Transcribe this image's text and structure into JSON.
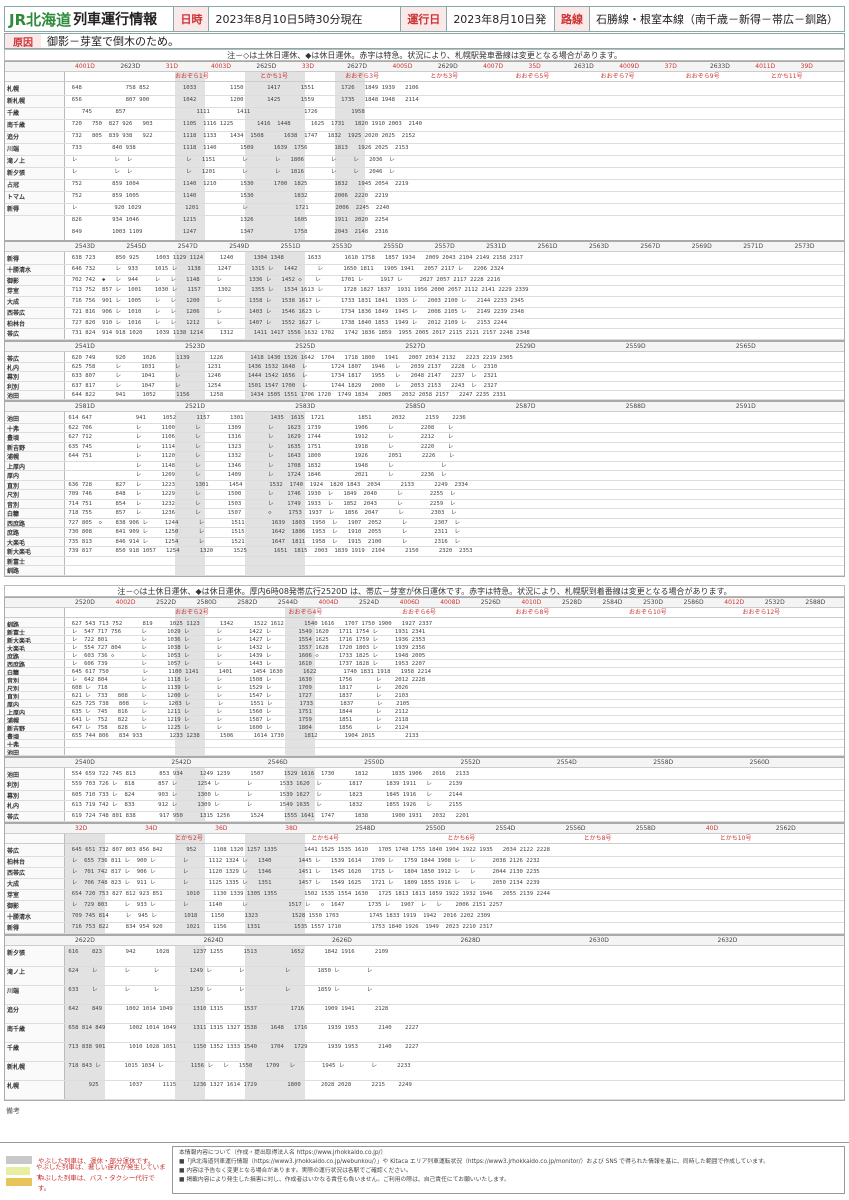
{
  "header": {
    "logo_brand": "JR北海道",
    "title": "列車運行情報",
    "date_label": "日時",
    "date_value": "2023年8月10日5時30分現在",
    "opday_label": "運行日",
    "opday_value": "2023年8月10日発",
    "route_label": "路線",
    "route_value": "石勝線・根室本線（南千歳－新得－帯広－釧路）"
  },
  "cause": {
    "label": "原因",
    "text": "御影－芽室で倒木のため。"
  },
  "notes": {
    "top_note": "注－◇は土休日運休、◆は休日運休。赤字は特急。状況により、札幌駅発車番線は変更となる場合があります。",
    "mid_note": "注－◇は土休日運休、◆は休日運休。厚内6時08発帯広行2520D は、帯広－芽室が休日運休です。赤字は特急。状況により、札幌駅到着番線は変更となる場合があります。"
  },
  "block1": {
    "trains": [
      "4001D",
      "2623D",
      "31D",
      "4003D",
      "2625D",
      "33D",
      "2627D",
      "4005D",
      "2629D",
      "4007D",
      "35D",
      "2631D",
      "4009D",
      "37D",
      "2633D",
      "4011D",
      "39D"
    ],
    "names": [
      "おおぞら1号",
      "とかち1号",
      "おおぞら3号",
      "とかち3号",
      "おおぞら5号",
      "おおぞら7号",
      "おおぞら9号",
      "とかち11号"
    ],
    "stations": [
      "札幌",
      "新札幌",
      "千歳",
      "南千歳",
      "追分",
      "川端",
      "滝ノ上",
      "新夕張",
      "占冠",
      "トマム",
      "新得"
    ],
    "rows": [
      "  648             758 852          1033          1150       1417      1551        1726   1849 1939   2106",
      "  656             807 900          1042          1200       1425      1559        1735   1848 1948   2114",
      "     745       857                     1111        1411                1726          1958",
      "  720   750  827 926   903         1105  1116 1225       1416  1448      1625  1731   1820 1910 2003  2140",
      "  732   805  839 938   922         1118  1133    1434  1508      1638  1747   1832  1925 2020 2025  2152",
      "  733         840 938              1118  1140       1509      1639  1756        1813   1926 2025  2153",
      "  レ           レ  レ                レ   1151        レ        レ   1806        レ     レ   2036  レ",
      "  レ           レ  レ                レ   1201        レ        レ   1816        レ     レ   2046  レ",
      "  752         859 1004             1140  1210       1530      1700  1825        1832   1945 2054  2219",
      "  752         859 1005             1140             1530            1832        2006  2220  2219",
      "  レ           920 1029             1201             レ              1721        2006  2245  2240",
      "  826         934 1046             1215             1326            1605        1911  2020  2254",
      "  849         1003 1109            1247             1347            1758        2043  2148  2316"
    ]
  },
  "block2": {
    "trains": [
      "2543D",
      "2545D",
      "2547D",
      "2549D",
      "2551D",
      "2553D",
      "2555D",
      "2557D",
      "2531D",
      "2561D",
      "2563D",
      "2567D",
      "2569D",
      "2571D",
      "2573D"
    ],
    "stations": [
      "新得",
      "十勝清水",
      "御影",
      "芽室",
      "大成",
      "西帯広",
      "柏林台",
      "帯広"
    ],
    "rows": [
      "  638 723      850 925     1003 1129 1124     1240      1304 1348       1633       1610 1758   1857 1934   2009 2043 2104 2149 2158 2317",
      "  646 732      レ  933     1015 レ   1138     1247      1315 レ   1442      レ      1650 1811   1905 1941   2057 2117 レ   2206 2324",
      "  702 742  ◆   レ  944     レ   レ   1148     レ        1336 レ   1452 ◇    レ      1701 レ     1917 レ     2027 2057 2117 2228 2216",
      "  713 752  857 レ  1001    1030 レ   1157     1302      1355 レ   1534 1613 レ      1728 1827 1837  1931 1956 2000 2057 2112 2141 2229 2339",
      "  716 756  901 レ  1005    レ   レ   1200     レ        1358 レ   1538 1617 レ      1733 1831 1841  1935 レ   2003 2100 レ   2144 2233 2345",
      "  721 816  906 レ  1010    レ   レ   1206     レ        1403 レ   1546 1623 レ      1734 1836 1849  1945 レ   2008 2105 レ   2149 2239 2348",
      "  727 820  910 レ  1016    レ   レ   1212     レ        1407 レ   1552 1627 レ      1738 1840 1853  1949 レ   2012 2109 レ   2153 2244",
      "  731 824  914 918 1020    1039 1138 1214     1312      1411 1417 1556 1632 1702   1742 1836 1859  1955 2005 2017 2115 2121 2157 2248 2348"
    ]
  },
  "block3": {
    "trains": [
      "2541D",
      "2523D",
      "2525D",
      "2527D",
      "2529D",
      "2559D",
      "2565D"
    ],
    "stations": [
      "帯広",
      "札内",
      "幕別",
      "利別",
      "池田"
    ],
    "rows": [
      "  620 749      920     1026      1139      1226        1418 1430 1526 1642  1704   1718 1800   1941   2007 2034 2132   2223 2219 2305",
      "  625 758      レ      1031      レ        1231        1436 1532 1648  レ       1724 1807   1946   レ   2039 2137   2228  レ  2310",
      "  633 807      レ      1041      レ        1246        1444 1542 1656  レ       1734 1817   1955   レ   2048 2147   2237  レ  2321",
      "  637 817      レ      1047      レ        1254        1501 1547 1700  レ       1744 1829   2000   レ   2053 2153   2243  レ  2327",
      "  644 822      941     1052      1156      1258        1434 1505 1551 1706 1720  1749 1834   2005   2032 2058 2157   2247 2235 2331"
    ]
  },
  "block4": {
    "trains": [
      "2581D",
      "2521D",
      "2583D",
      "2585D",
      "2587D",
      "2588D",
      "2591D"
    ],
    "stations": [
      "池田",
      "十弗",
      "豊頃",
      "新吉野",
      "浦幌",
      "上厚内",
      "厚内",
      "直別",
      "尺別",
      "音別",
      "白糠",
      "西庶路",
      "庶路",
      "大楽毛",
      "新大楽毛",
      "新富士",
      "釧路"
    ],
    "rows": [
      " 614 647             941     1052      1157      1301        1435  1615  1721          1851      2032      2159    2236",
      " 622 706             レ      1100      レ        1309        レ    1623  1739          1906      レ        2208    レ",
      " 627 712             レ      1106      レ        1316        レ    1629  1744          1912      レ        2212    レ",
      " 635 745             レ      1114      レ        1323        レ    1635  1751          1918      レ        2220    レ",
      " 644 751             レ      1120      レ        1332        レ    1643  1800          1926      2051      2226    レ",
      "                     レ      1148      レ        1346        レ    1708  1832          1948      レ              レ",
      "                     レ      1209      レ        1409        レ    1724  1846          2021      レ        2236  レ",
      " 636 728       827   レ      1223      1301      1454        1532  1740  1924  1820 1843  2034      2133      2249  2334",
      " 709 746       848   レ      1229      レ        1500        レ    1746  1930  レ   1849  2040      レ        2255  レ",
      " 714 751       854   レ      1232      レ        1503        レ    1749  1933  レ   1852  2043      レ        2259  レ",
      " 718 755       857   レ      1236      レ        1507        ◇     1753  1937  レ   1856  2047      レ        2303  レ",
      " 727 805  ◇    838 906 レ     1244      レ        1511        1639  1803  1950  レ   1907  2052      レ        2307  レ",
      " 730 808       841 909 レ     1250      レ        1515        1642  1806  1953  レ   1910  2055      レ        2311  レ",
      " 735 813       846 914 レ     1254      レ        1521        1647  1811  1958  レ   1915  2100      レ        2316  レ",
      " 739 817       850 918 1057   1254      1320      1525        1651  1815  2003  1839 1919  2104      2150      2320  2353"
    ]
  },
  "block5": {
    "trains": [
      "2520D",
      "4002D",
      "2522D",
      "2580D",
      "2582D",
      "2544D",
      "4004D",
      "2524D",
      "4006D",
      "4008D",
      "2526D",
      "4010D",
      "2528D",
      "2584D",
      "2530D",
      "2586D",
      "4012D",
      "2532D",
      "2588D"
    ],
    "names": [
      "おおぞら2号",
      "おおぞら4号",
      "おおぞら6号",
      "おおぞら8号",
      "おおぞら10号",
      "おおぞら12号"
    ],
    "stations": [
      "釧路",
      "新富士",
      "新大楽毛",
      "大楽毛",
      "庶路",
      "西庶路",
      "白糠",
      "音別",
      "尺別",
      "直別",
      "厚内",
      "上厚内",
      "浦幌",
      "新吉野",
      "豊頃",
      "十弗",
      "池田"
    ],
    "rows": [
      "  627 543 713 752      819     1025 1123      1342      1522 1612      1540 1616   1707 1750 1900   1927 2337",
      "  レ  547 717 756      レ      1029 レ        レ        1422 レ        1549 1620   1711 1754 レ     1931 2341",
      "  レ  722 801          レ      1036 レ        レ        1427 レ        1554 1625   1716 1759 レ     1936 2353",
      "  レ  554 727 804      レ      1038 レ        レ        1432 レ        1557 1628   1720 1803 レ     1939 2356",
      "  レ  603 736 ◇        レ      1053 レ        レ        1439 レ        1606 ◇      1733 1825 レ     1948 2005",
      "  レ  606 739          レ      1057 レ        レ        1443 レ        1610        1737 1828 レ     1953 2207",
      "  645 617 750          レ      1100 1141      1401      1454 1630      1622        1740 1831 1918   1958 2214",
      "  レ  642 804          レ      1118 レ        レ        1508 レ        1630        1756       レ    2012 2228",
      "  608 レ  718          レ      1139 レ        レ        1529 レ        1709        1817       レ    2026",
      "  621 レ  733   808    レ      1200 レ        レ        1547 レ        1727        1837       レ    2103",
      "  625 725 738   808    レ      1203 レ        レ        1551 レ        1733        1837       レ    2105",
      "  635 レ  745   816    レ      1211 レ        レ        1560 レ        1751        1844       レ    2112",
      "  641 レ  752   822    レ      1219 レ        レ        1587 レ        1759        1851       レ    2118",
      "  647 レ  758   828    レ      1225 レ        レ        1600 レ        1804        1856       レ    2124",
      "  655 744 806   834 933        1233 1238      1506      1614 1730      1812        1904 2015         2133"
    ]
  },
  "block6": {
    "trains": [
      "2540D",
      "2542D",
      "2546D",
      "2550D",
      "2552D",
      "2554D",
      "2558D",
      "2560D"
    ],
    "stations": [
      "池田",
      "利別",
      "幕別",
      "札内",
      "帯広"
    ],
    "rows": [
      "  554 659 722 745 813       853 934     1249 1239      1507      1529 1616  1730      1812       1835 1906   2016   2133",
      "  559 703 726 レ  818       857 レ      1254 レ        レ        1533 1620  レ        1817       1839 1911   レ     2139",
      "  605 710 733 レ  824       903 レ      1300 レ        レ        1539 1627  レ        1823       1845 1916   レ     2144",
      "  613 719 742 レ  833       912 レ      1309 レ        レ        1549 1635  レ        1832       1855 1926   レ     2155",
      "  619 724 748 801 838       917 950     1315 1256      1524      1555 1641  1747      1838       1900 1931   2032   2201"
    ]
  },
  "block7": {
    "trains": [
      "32D",
      "34D",
      "36D",
      "38D",
      "2548D",
      "2550D",
      "2554D",
      "2556D",
      "2558D",
      "40D",
      "2562D"
    ],
    "names": [
      "とかち2号",
      "とかち4号",
      "とかち6号",
      "とかち8号",
      "とかち10号"
    ],
    "stations": [
      "帯広",
      "柏林台",
      "西帯広",
      "大成",
      "芽室",
      "御影",
      "十勝清水",
      "新得"
    ],
    "rows": [
      "  645 651 732 807 803 856 842       952     1108 1320 1257 1335        1441 1525 1535 1610   1705 1748 1755 1840 1904 1922 1935   2034 2122 2228",
      "  レ  655 736 811 レ  900 レ        レ      1112 1324 レ   1340        1445 レ   1539 1614   1709 レ   1759 1844 1908 レ   レ     2038 2126 2232",
      "  レ  701 742 817 レ  906 レ        レ      1120 1329 レ   1346        1451 レ   1545 1620   1715 レ   1804 1850 1912 レ   レ     2044 2130 2235",
      "  レ  706 748 823 レ  911 レ        レ      1125 1335 レ   1351        1457 レ   1549 1625   1721 レ   1809 1855 1916 レ   レ     2050 2134 2239",
      "  654 720 753 827 812 923 851       1010    1130 1339 1305 1355        1502 1535 1554 1630   1725 1813 1813 1859 1922 1932 1946   2055 2139 2244",
      "  レ  729 803     レ  933 レ        レ      1140      レ            1517 レ   ◇  1647       1735 レ   1907  レ   レ    2006 2151 2257",
      "  709 745 814     レ  945 レ        1018    1150      1323          1528 1550 1703         1745 1833 1919  1942  2016 2202 2309",
      "  716 753 822     834 954 920       1021    1156      1331          1535 1557 1710         1753 1840 1926  1949  2023 2210 2317"
    ]
  },
  "block8": {
    "trains": [
      "2622D",
      "2624D",
      "2626D",
      "2628D",
      "2630D",
      "2632D"
    ],
    "stations": [
      "新夕張",
      "滝ノ上",
      "川端",
      "追分",
      "南千歳",
      "千歳",
      "新札幌",
      "札幌"
    ],
    "rows": [
      " 616    823       942      1028       1237 1255      1513          1652      1842 1916      2109",
      " 624    レ        レ       レ         1249 レ        レ            レ        1850 レ        レ",
      " 633    レ        レ       レ         1259 レ        レ            レ        1859 レ        レ",
      " 642    849       1002 1014 1049      1310 1315      1537          1716      1909 1941      2128",
      " 658 814 849       1002 1014 1049     1311 1315 1327 1538    1648   1716      1939 1953      2140    2227",
      " 713 838 901       1010 1028 1051     1150 1352 1333 1540    1704   1729      1939 1953      2140    2227",
      " 718 843 レ       1015 1034 レ        1156 レ   レ   1550    1709   レ        1945 レ        レ      2233",
      "       925         1037      1115     1236 1327 1614 1729         1800      2028 2028      2215    2249"
    ]
  },
  "legend": {
    "item1": "やぶした列車は、運休・部分運休です。",
    "item2": "やぶした列車は、著しい遅れが発生しています。",
    "item3": "やぶした列車は、バス・タクシー代行です。",
    "color_cancel": "#c8c8c8",
    "color_delay": "#e8eea0",
    "color_bus": "#e7c55a"
  },
  "remarks_label": "備考",
  "footer": {
    "line1": "本情報内容について（作成・提出取得法人名 https://www.jrhokkaido.co.jp/）",
    "line2": "■「JR北海道列車運行情報（https://www3.jrhokkaido.co.jp/webunkou/）」や Kitaca エリア列車運転状況（https://www3.jrhokkaido.co.jp/monitor/）および SNS で得られた情報を基に、同時した範囲で作成しています。",
    "line3": "■ 内容は予告なく変更となる場合があります。実際の運行状況は各駅でご確認ください。",
    "line4": "■ 掲載内容により発生した損害に対し、作成者はいかなる責任も負いません。ご利用の際は、自己責任にてお願いいたします。"
  }
}
